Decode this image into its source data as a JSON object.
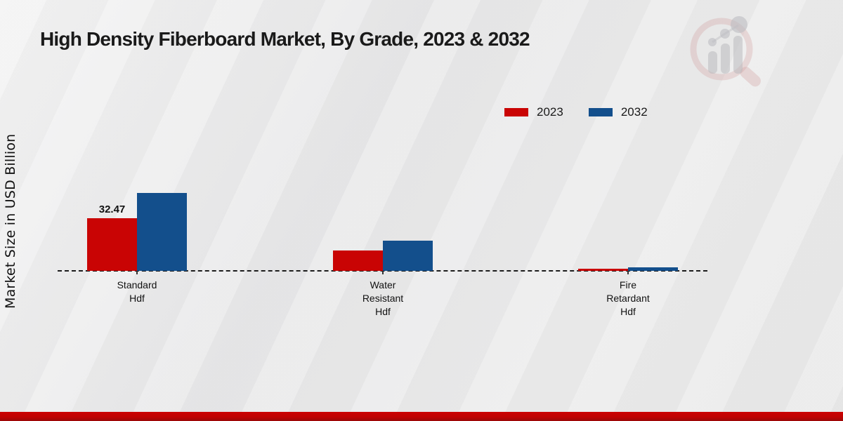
{
  "header": {
    "title": "High Density Fiberboard Market, By Grade, 2023 & 2032"
  },
  "y_axis": {
    "label": "Market Size in USD Billion"
  },
  "legend": {
    "items": [
      {
        "label": "2023",
        "color": "#c90404"
      },
      {
        "label": "2032",
        "color": "#134f8c"
      }
    ]
  },
  "chart_data": {
    "type": "bar",
    "title": "High Density Fiberboard Market, By Grade, 2023 & 2032",
    "ylabel": "Market Size in USD Billion",
    "xlabel": "",
    "categories": [
      "Standard Hdf",
      "Water Resistant Hdf",
      "Fire Retardant Hdf"
    ],
    "category_label_lines": [
      [
        "Standard",
        "Hdf"
      ],
      [
        "Water",
        "Resistant",
        "Hdf"
      ],
      [
        "Fire",
        "Retardant",
        "Hdf"
      ]
    ],
    "series": [
      {
        "name": "2023",
        "color": "#c90404",
        "values": [
          32.47,
          12.6,
          1.3
        ]
      },
      {
        "name": "2032",
        "color": "#134f8c",
        "values": [
          48.1,
          18.6,
          2.2
        ]
      }
    ],
    "data_labels": [
      {
        "series": "2023",
        "category_index": 0,
        "text": "32.47"
      }
    ],
    "ylim": [
      0,
      55
    ],
    "gridlines": false,
    "baseline_style": "dashed",
    "legend_position": "top-right"
  },
  "watermark": {
    "icon": "bar-chart-magnifier-logo"
  },
  "footer": {
    "accent_color": "#c00404"
  }
}
